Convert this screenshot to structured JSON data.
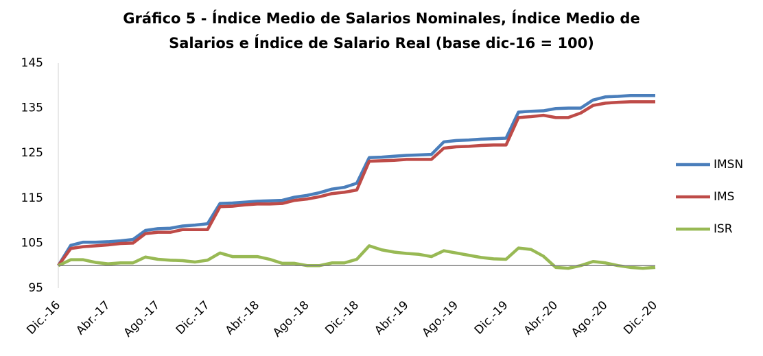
{
  "chart_data": {
    "type": "line",
    "title": [
      "Gráfico 5 - Índice Medio de Salarios Nominales, Índice Medio de",
      "Salarios e Índice de Salario Real (base dic-16 = 100)"
    ],
    "categories": [
      "Dic.-16",
      null,
      null,
      null,
      "Abr.-17",
      null,
      null,
      null,
      "Ago.-17",
      null,
      null,
      null,
      "Dic.-17",
      null,
      null,
      null,
      "Abr.-18",
      null,
      null,
      null,
      "Ago.-18",
      null,
      null,
      null,
      "Dic.-18",
      null,
      null,
      null,
      "Abr.-19",
      null,
      null,
      null,
      "Ago.-19",
      null,
      null,
      null,
      "Dic.-19",
      null,
      null,
      null,
      "Abr.-20",
      null,
      null,
      null,
      "Ago.-20",
      null,
      null,
      null,
      "Dic.-20"
    ],
    "series": [
      {
        "name": "IMSN",
        "color": "#4a7ebb",
        "values": [
          100,
          104.5,
          105.2,
          105.2,
          105.3,
          105.5,
          105.8,
          107.8,
          108.2,
          108.3,
          108.8,
          109,
          109.3,
          113.8,
          113.9,
          114.1,
          114.3,
          114.4,
          114.5,
          115.2,
          115.6,
          116.2,
          117,
          117.4,
          118.3,
          124,
          124.1,
          124.3,
          124.5,
          124.6,
          124.7,
          127.5,
          127.8,
          127.9,
          128.1,
          128.2,
          128.3,
          134.1,
          134.3,
          134.4,
          134.9,
          135,
          135,
          136.8,
          137.5,
          137.6,
          137.8,
          137.8,
          137.8
        ]
      },
      {
        "name": "IMS",
        "color": "#be4b48",
        "values": [
          100,
          103.8,
          104.2,
          104.4,
          104.6,
          104.9,
          105,
          107.1,
          107.4,
          107.4,
          108,
          108,
          108,
          113.1,
          113.2,
          113.5,
          113.7,
          113.7,
          113.8,
          114.5,
          114.8,
          115.3,
          116,
          116.3,
          116.8,
          123.2,
          123.3,
          123.4,
          123.6,
          123.6,
          123.6,
          126.1,
          126.4,
          126.5,
          126.7,
          126.8,
          126.8,
          132.9,
          133.1,
          133.4,
          132.9,
          132.9,
          133.9,
          135.6,
          136.1,
          136.3,
          136.4,
          136.4,
          136.4
        ]
      },
      {
        "name": "ISR",
        "color": "#98b954",
        "values": [
          100,
          101.3,
          101.3,
          100.7,
          100.4,
          100.6,
          100.6,
          101.9,
          101.4,
          101.2,
          101.1,
          100.8,
          101.2,
          102.8,
          102,
          102,
          102,
          101.4,
          100.5,
          100.5,
          100,
          100,
          100.6,
          100.6,
          101.4,
          104.4,
          103.5,
          103,
          102.7,
          102.5,
          102,
          103.3,
          102.8,
          102.3,
          101.8,
          101.5,
          101.4,
          103.9,
          103.6,
          102.1,
          99.6,
          99.4,
          100,
          100.9,
          100.6,
          100,
          99.6,
          99.4,
          99.6
        ]
      }
    ],
    "ylim": [
      95,
      145
    ],
    "yticks": [
      95,
      105,
      115,
      125,
      135,
      145
    ],
    "reference_line": 100,
    "legend": "right",
    "grid": false
  }
}
